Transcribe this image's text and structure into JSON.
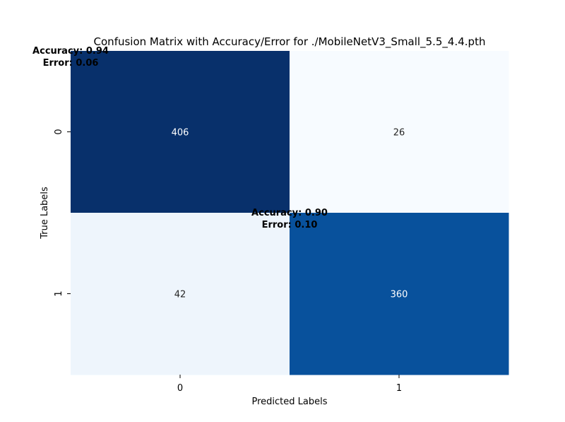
{
  "chart_data": {
    "type": "heatmap",
    "title": "Confusion Matrix with Accuracy/Error for ./MobileNetV3_Small_5.5_4.4.pth",
    "xlabel": "Predicted Labels",
    "ylabel": "True Labels",
    "x_categories": [
      "0",
      "1"
    ],
    "y_categories": [
      "0",
      "1"
    ],
    "values": [
      [
        406,
        26
      ],
      [
        42,
        360
      ]
    ],
    "colormap": "Blues",
    "colorbar": false,
    "grid": false,
    "cell_colors": [
      [
        "#08306b",
        "#f7fbff"
      ],
      [
        "#eef5fc",
        "#08519c"
      ]
    ],
    "annotations": [
      {
        "row": 0,
        "accuracy_text": "Accuracy: 0.94",
        "error_text": "Error: 0.06"
      },
      {
        "row": 1,
        "accuracy_text": "Accuracy: 0.90",
        "error_text": "Error: 0.10"
      }
    ]
  }
}
